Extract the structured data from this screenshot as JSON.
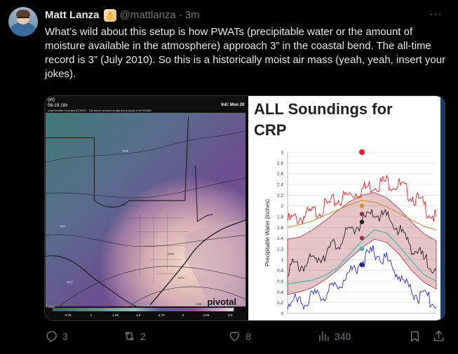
{
  "post": {
    "display_name": "Matt Lanza",
    "handle": "@mattlanza",
    "separator": "·",
    "time": "3m",
    "text": "What’s wild about this setup is how PWATs (precipitable water or the amount of moisture available in the atmosphere) approach 3” in the coastal bend. The all-time record is 3” (July 2010). So this is a historically moist air mass (yeah, yeah, insert your jokes).",
    "emoji_icon": "ok-hand-emoji-icon"
  },
  "map": {
    "header_top": "(in)",
    "header_date": "06-19 18z",
    "header_init": "Init: Mon 20",
    "source_note": "Large Weather Forecasts (ECMWF) · This service is based on data and products of the ECMWF",
    "watermark": "pivotal",
    "colorbar_ticks": [
      "0.75",
      "1",
      "1.25",
      "1.5",
      "1.75",
      "2",
      "2.25",
      "2.5"
    ],
    "site_label": "f.com",
    "contour_labels": [
      "1016",
      "1012",
      "1008",
      "1010",
      "1012",
      "1008",
      "1010",
      "1008"
    ]
  },
  "chart": {
    "title_line1": "ALL Soundings for",
    "title_line2": "CRP"
  },
  "chart_data": {
    "type": "line",
    "title": "ALL Soundings for CRP",
    "ylabel": "Precipitable Water (inches)",
    "ylim": [
      0,
      3
    ],
    "yticks": [
      "0",
      "0.2",
      "0.4",
      "0.6",
      "0.8",
      "1",
      "1.2",
      "1.4",
      "1.6",
      "1.8",
      "2",
      "2.2",
      "2.4",
      "2.6",
      "2.8",
      "3"
    ],
    "x_index": [
      0,
      1,
      2,
      3,
      4,
      5,
      6,
      7,
      8,
      9,
      10,
      11,
      12
    ],
    "series": [
      {
        "color": "#e8202a",
        "values": [
          1.72,
          1.78,
          1.86,
          1.98,
          2.1,
          2.2,
          2.3,
          2.4,
          2.45,
          2.38,
          2.2,
          2.0,
          1.75
        ]
      },
      {
        "color": "#d4903a",
        "values": [
          1.6,
          1.65,
          1.72,
          1.82,
          1.92,
          2.02,
          2.1,
          2.07,
          1.98,
          1.86,
          1.74,
          1.62,
          1.55
        ]
      },
      {
        "color": "#222222",
        "values": [
          0.85,
          0.88,
          0.98,
          1.12,
          1.3,
          1.5,
          1.7,
          1.85,
          1.78,
          1.55,
          1.25,
          1.0,
          0.85
        ]
      },
      {
        "color": "#3fb8b0",
        "values": [
          0.55,
          0.58,
          0.62,
          0.7,
          0.85,
          1.1,
          1.35,
          1.55,
          1.5,
          1.25,
          0.98,
          0.72,
          0.6
        ]
      },
      {
        "color": "#2a2acc",
        "values": [
          0.2,
          0.22,
          0.28,
          0.35,
          0.52,
          0.75,
          0.98,
          1.15,
          1.0,
          0.7,
          0.42,
          0.28,
          0.22
        ]
      }
    ],
    "band": {
      "color": "#a0303a",
      "upper": [
        1.38,
        1.42,
        1.55,
        1.72,
        1.9,
        2.08,
        2.2,
        2.25,
        2.15,
        1.95,
        1.7,
        1.48,
        1.35
      ],
      "lower": [
        0.35,
        0.4,
        0.48,
        0.62,
        0.8,
        1.02,
        1.22,
        1.38,
        1.32,
        1.1,
        0.8,
        0.58,
        0.45
      ]
    },
    "markers": [
      {
        "value": 3.0,
        "color": "#e8202a",
        "shape": "heart"
      },
      {
        "value": 2.0,
        "color": "#d4903a"
      },
      {
        "value": 1.85,
        "color": "#a0303a"
      },
      {
        "value": 1.7,
        "color": "#222222"
      },
      {
        "value": 1.4,
        "color": "#a0303a"
      },
      {
        "value": 1.2,
        "color": "#3fb8b0"
      },
      {
        "value": 0.9,
        "color": "#222288"
      }
    ]
  },
  "actions": {
    "reply_count": "3",
    "repost_count": "2",
    "like_count": "8",
    "view_count": "340"
  }
}
